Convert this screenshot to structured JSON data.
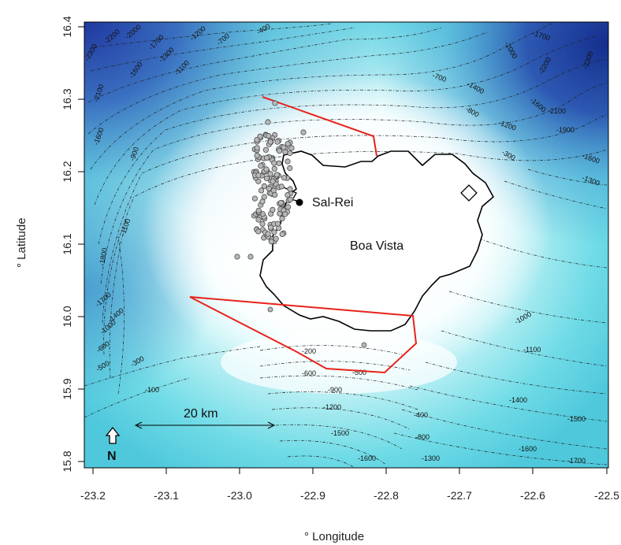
{
  "axes": {
    "x_label": "° Longitude",
    "y_label": "° Latitude",
    "x_ticks": [
      "-23.2",
      "-23.1",
      "-23.0",
      "-22.9",
      "-22.8",
      "-22.7",
      "-22.6",
      "-22.5"
    ],
    "y_ticks": [
      "15.8",
      "15.9",
      "16.0",
      "16.1",
      "16.2",
      "16.3",
      "16.4"
    ],
    "x_range": [
      -23.2,
      -22.5
    ],
    "y_range": [
      15.8,
      16.4
    ]
  },
  "labels": {
    "island": "Boa Vista",
    "town": "Sal-Rei",
    "scale_bar": "20 km",
    "north": "N"
  },
  "colors": {
    "deep": "#1f3d9e",
    "mid": "#4fd2de",
    "shallow": "#ffffff",
    "boundary": "#e8221a",
    "points_fill": "#b8b8b8",
    "points_stroke": "#4a4a4a"
  },
  "contour_labels": [
    "-2300",
    "-2200",
    "-2000",
    "-1700",
    "-1200",
    "-700",
    "-400",
    "-2100",
    "-1600",
    "-1300",
    "-1100",
    "-800",
    "-1400",
    "-1700",
    "-2000",
    "-2200",
    "-2300",
    "-1200",
    "-700",
    "-1600",
    "-1900",
    "-2100",
    "-1600",
    "-300",
    "-1300",
    "-900",
    "-1100",
    "-1600",
    "-1800",
    "-1700",
    "-1400",
    "-1000",
    "-600",
    "-500",
    "-300",
    "-100",
    "-200",
    "-500",
    "-600",
    "-900",
    "-1200",
    "-1500",
    "-1600",
    "-1300",
    "-800",
    "-400",
    "-1000",
    "-1100",
    "-1400",
    "-1500",
    "-1600",
    "-1700"
  ]
}
